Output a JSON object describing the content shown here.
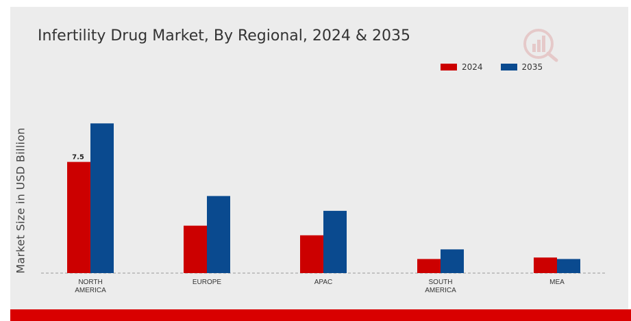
{
  "chart_data": {
    "type": "bar",
    "title": "Infertility Drug Market, By Regional, 2024 & 2035",
    "xlabel": "",
    "ylabel": "Market Size in USD Billion",
    "categories": [
      [
        "NORTH",
        "AMERICA"
      ],
      [
        "EUROPE"
      ],
      [
        "APAC"
      ],
      [
        "SOUTH",
        "AMERICA"
      ],
      [
        "MEA"
      ]
    ],
    "series": [
      {
        "name": "2024",
        "color": "#cc0000",
        "values": [
          7.5,
          3.2,
          2.55,
          0.95,
          1.05
        ]
      },
      {
        "name": "2035",
        "color": "#0a4a8f",
        "values": [
          10.1,
          5.2,
          4.2,
          1.6,
          0.95
        ]
      }
    ],
    "data_labels": [
      {
        "series": 0,
        "index": 0,
        "text": "7.5"
      }
    ],
    "ylim": [
      0,
      14.5
    ],
    "grid": false,
    "legend": "top-right"
  }
}
